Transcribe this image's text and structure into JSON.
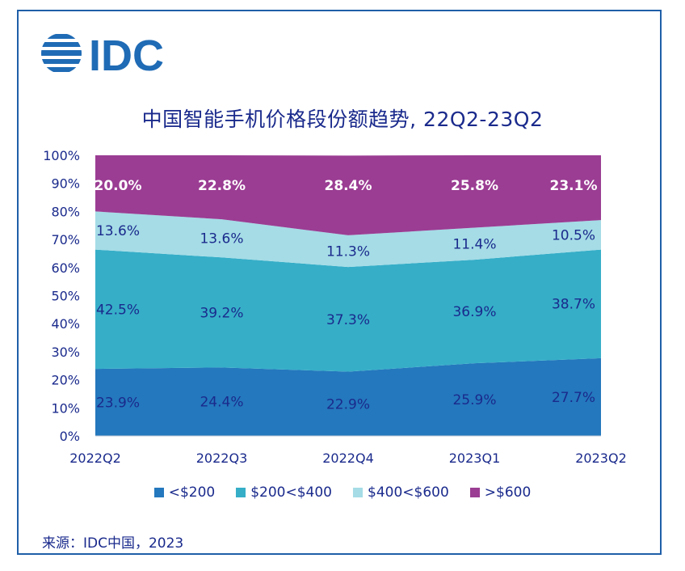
{
  "logo_text": "IDC",
  "logo_color": "#1f6bb5",
  "title": "中国智能手机价格段份额趋势, 22Q2-23Q2",
  "source": "来源：IDC中国，2023",
  "chart_data": {
    "type": "area",
    "stacked": true,
    "normalized": true,
    "categories": [
      "2022Q2",
      "2022Q3",
      "2022Q4",
      "2023Q1",
      "2023Q2"
    ],
    "y_ticks": [
      "0%",
      "10%",
      "20%",
      "30%",
      "40%",
      "50%",
      "60%",
      "70%",
      "80%",
      "90%",
      "100%"
    ],
    "ylim": [
      0,
      100
    ],
    "legend_position": "bottom",
    "series": [
      {
        "name": "<$200",
        "color": "#2478bd",
        "label_color": "#1a2a8c",
        "values": [
          23.9,
          24.4,
          22.9,
          25.9,
          27.7
        ],
        "labels": [
          "23.9%",
          "24.4%",
          "22.9%",
          "25.9%",
          "27.7%"
        ]
      },
      {
        "name": "$200<$400",
        "color": "#36aec8",
        "label_color": "#1a2a8c",
        "values": [
          42.5,
          39.2,
          37.3,
          36.9,
          38.7
        ],
        "labels": [
          "42.5%",
          "39.2%",
          "37.3%",
          "36.9%",
          "38.7%"
        ]
      },
      {
        "name": "$400<$600",
        "color": "#a5dce6",
        "label_color": "#1a2a8c",
        "values": [
          13.6,
          13.6,
          11.3,
          11.4,
          10.5
        ],
        "labels": [
          "13.6%",
          "13.6%",
          "11.3%",
          "11.4%",
          "10.5%"
        ]
      },
      {
        "name": ">$600",
        "color": "#9b3d93",
        "label_color": "#ffffff",
        "values": [
          20.0,
          22.8,
          28.4,
          25.8,
          23.1
        ],
        "labels": [
          "20.0%",
          "22.8%",
          "28.4%",
          "25.8%",
          "23.1%"
        ]
      }
    ]
  }
}
